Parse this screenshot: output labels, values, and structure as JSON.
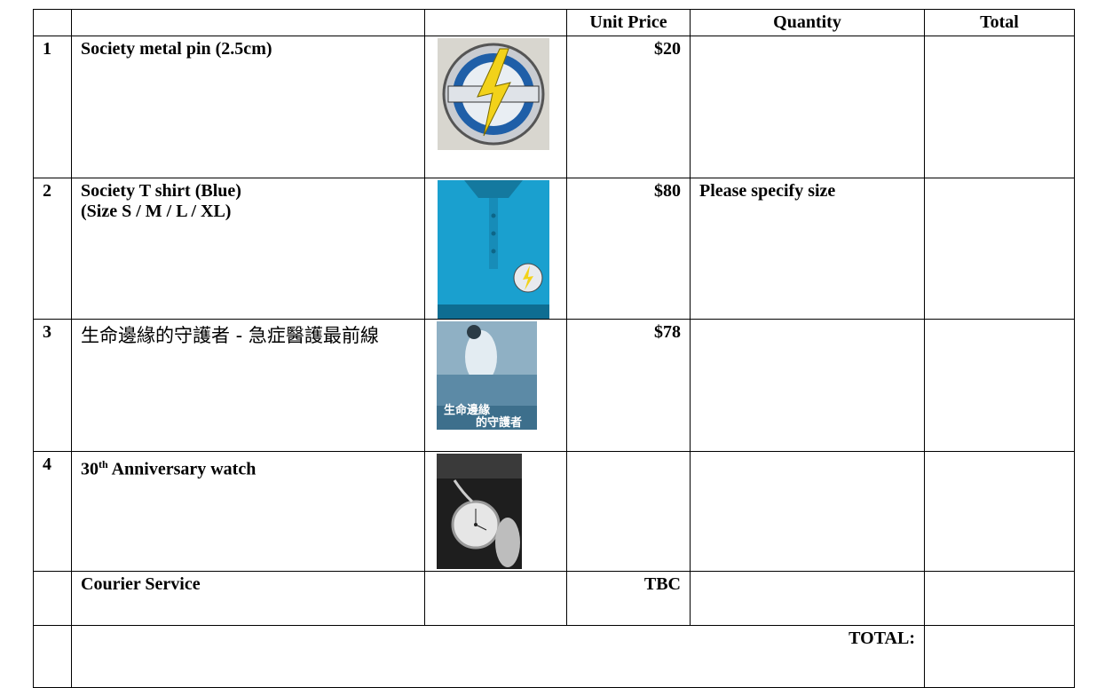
{
  "table": {
    "header": [
      "Unit Price",
      "Quantity",
      "Total"
    ],
    "rows": [
      {
        "number": "1",
        "name": [
          "Society metal pin (2.5cm)"
        ],
        "unit_price": "$20"
      },
      {
        "number": "2",
        "name": [
          "Society T shirt (Blue)",
          "(Size S / M / L / XL)"
        ],
        "unit_price": "$80",
        "quantity": "Please specify size"
      },
      {
        "number": "3",
        "name": [
          "生命邊緣的守護者 - 急症醫護最前線"
        ],
        "unit_price": "$78",
        "image_text": [
          "生命邊緣",
          "的守護者"
        ]
      },
      {
        "number": "4",
        "name": {
          "base": "30",
          "superscript": "th",
          "rest": "Anniversary watch"
        }
      },
      {
        "name": [
          "Courier Service"
        ],
        "unit_price": "TBC"
      }
    ],
    "total_label": "TOTAL:"
  }
}
